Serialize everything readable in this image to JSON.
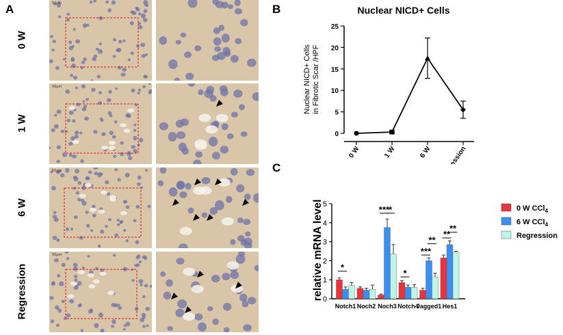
{
  "panels": {
    "A": {
      "letter": "A",
      "rows": [
        {
          "label": "0 W",
          "scale": "50μm"
        },
        {
          "label": "1 W",
          "scale": "50μm"
        },
        {
          "label": "6 W",
          "scale": "50μm"
        },
        {
          "label": "Regression",
          "scale": "50μm"
        }
      ]
    },
    "B": {
      "letter": "B"
    },
    "C": {
      "letter": "C"
    }
  },
  "chart_data": [
    {
      "type": "line",
      "title": "Nuclear NICD+ Cells",
      "ylabel": "Nuclear NICD+ Cells\nin Fibrotic Scar /HPF",
      "xlabel": "",
      "categories": [
        "0 W",
        "1 W",
        "6 W",
        "Regression"
      ],
      "values": [
        0,
        0.3,
        17.5,
        5.5
      ],
      "errors": [
        0,
        0.3,
        4.7,
        2.0
      ],
      "markers": [
        "circle",
        "square",
        "triangle",
        "diamond"
      ],
      "ylim": [
        0,
        25
      ],
      "yticks": [
        0,
        5,
        10,
        15,
        20,
        25
      ]
    },
    {
      "type": "bar",
      "ylabel": "relative mRNA level",
      "categories": [
        "Notch1",
        "Noch2",
        "Noch3",
        "Notch4",
        "Jagged1",
        "Hes1"
      ],
      "ylim": [
        0,
        5
      ],
      "yticks": [
        0,
        1,
        2,
        3,
        4,
        5
      ],
      "series": [
        {
          "name": "0 W CCl4",
          "color": "#e8343a",
          "values": [
            1.0,
            0.55,
            0.2,
            0.85,
            0.45,
            2.15
          ],
          "errors": [
            0.1,
            0.08,
            0.05,
            0.1,
            0.1,
            0.15
          ]
        },
        {
          "name": "6 W CCl4",
          "color": "#3a8ff0",
          "values": [
            0.5,
            0.45,
            3.75,
            0.6,
            2.0,
            2.85
          ],
          "errors": [
            0.12,
            0.1,
            0.45,
            0.12,
            0.15,
            0.2
          ]
        },
        {
          "name": "Regression",
          "color": "#bff5e4",
          "values": [
            0.7,
            0.5,
            2.35,
            0.6,
            1.15,
            2.45
          ],
          "errors": [
            0.15,
            0.22,
            0.5,
            0.15,
            0.2,
            0.05
          ]
        }
      ],
      "significance": [
        {
          "category": "Notch1",
          "label": "*"
        },
        {
          "category": "Noch3",
          "label": "***"
        },
        {
          "category": "Noch3",
          "label": "*"
        },
        {
          "category": "Notch4",
          "label": "*"
        },
        {
          "category": "Jagged1",
          "label": "***"
        },
        {
          "category": "Jagged1",
          "label": "**"
        },
        {
          "category": "Hes1",
          "label": "**"
        },
        {
          "category": "Hes1",
          "label": "**"
        }
      ]
    }
  ]
}
